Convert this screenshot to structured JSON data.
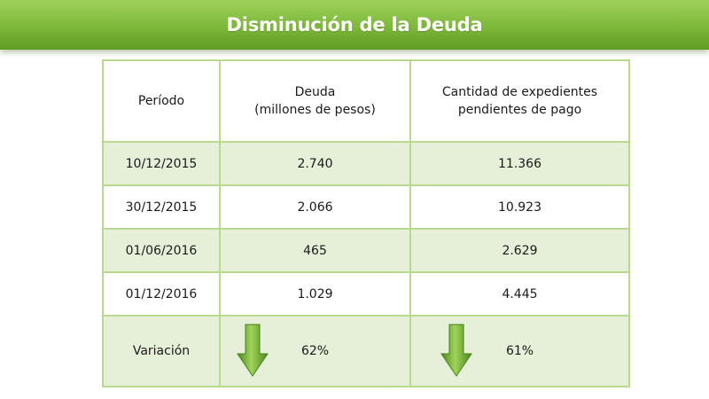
{
  "banner": {
    "title": "Disminución de la Deuda"
  },
  "table": {
    "headers": {
      "periodo": "Período",
      "deuda_line1": "Deuda",
      "deuda_line2": "(millones de pesos)",
      "expedientes_line1": "Cantidad de expedientes",
      "expedientes_line2": "pendientes de pago"
    },
    "rows": [
      {
        "periodo": "10/12/2015",
        "deuda": "2.740",
        "expedientes": "11.366"
      },
      {
        "periodo": "30/12/2015",
        "deuda": "2.066",
        "expedientes": "10.923"
      },
      {
        "periodo": "01/06/2016",
        "deuda": "465",
        "expedientes": "2.629"
      },
      {
        "periodo": "01/12/2016",
        "deuda": "1.029",
        "expedientes": "4.445"
      }
    ],
    "variacion": {
      "label": "Variación",
      "deuda": "62%",
      "expedientes": "61%",
      "indicator_icon": "down-arrow-icon"
    }
  },
  "colors": {
    "banner_green": "#7db83a",
    "border_green": "#b9d98f",
    "row_shade": "#e6f0d8",
    "arrow_green": "#6faa2c"
  }
}
